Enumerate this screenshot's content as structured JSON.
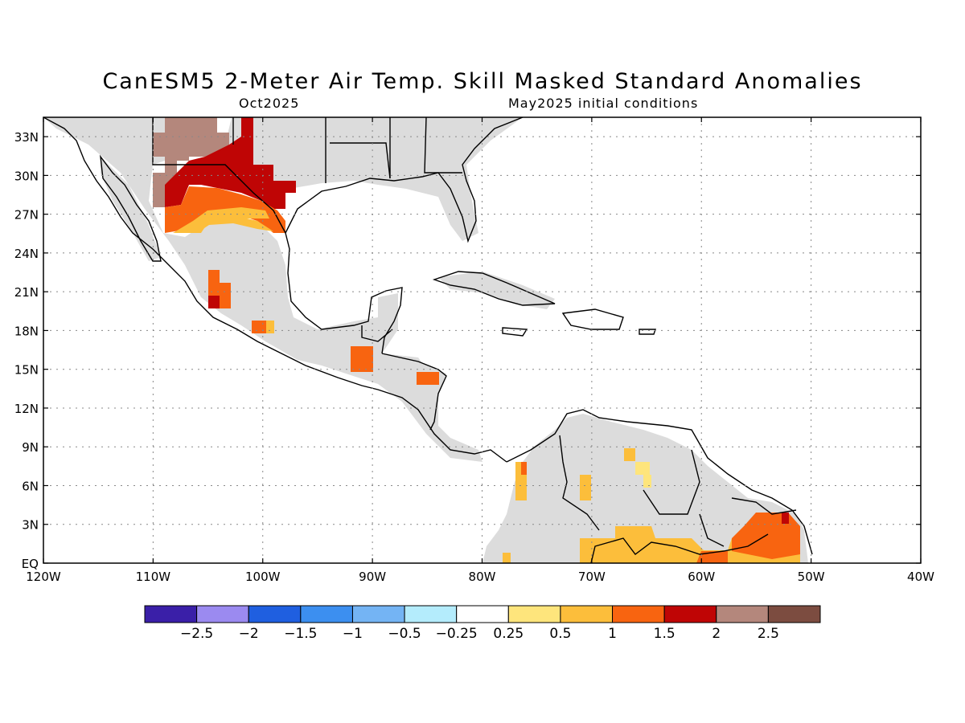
{
  "header": {
    "title": "CanESM5 2-Meter Air Temp. Skill Masked Standard Anomalies",
    "valid_month": "Oct2025",
    "init": "May2025 initial conditions"
  },
  "axes": {
    "lat_labels": [
      "33N",
      "30N",
      "27N",
      "24N",
      "21N",
      "18N",
      "15N",
      "12N",
      "9N",
      "6N",
      "3N",
      "EQ"
    ],
    "lat_values": [
      33,
      30,
      27,
      24,
      21,
      18,
      15,
      12,
      9,
      6,
      3,
      0
    ],
    "lon_labels": [
      "120W",
      "110W",
      "100W",
      "90W",
      "80W",
      "70W",
      "60W",
      "50W",
      "40W"
    ],
    "lon_values": [
      -120,
      -110,
      -100,
      -90,
      -80,
      -70,
      -60,
      -50,
      -40
    ],
    "lat_range": [
      0,
      34.5
    ],
    "lon_range": [
      -120,
      -40
    ],
    "grid": "dotted"
  },
  "colorbar": {
    "colors": [
      "#3a1fa8",
      "#9b8af0",
      "#1f5fe0",
      "#3c8ff0",
      "#74b4f4",
      "#b4ecfc",
      "#ffffff",
      "#fee57c",
      "#fcbe3b",
      "#f86410",
      "#bf0505",
      "#b4877c",
      "#7c4c40"
    ],
    "labels": [
      "-2.5",
      "-2",
      "-1.5",
      "-1",
      "-0.5",
      "-0.25",
      "0.25",
      "0.5",
      "1",
      "1.5",
      "2",
      "2.5"
    ]
  },
  "legend_colors": {
    "masked_gray": "#dcdcdc",
    "land_outline": "#000000"
  }
}
